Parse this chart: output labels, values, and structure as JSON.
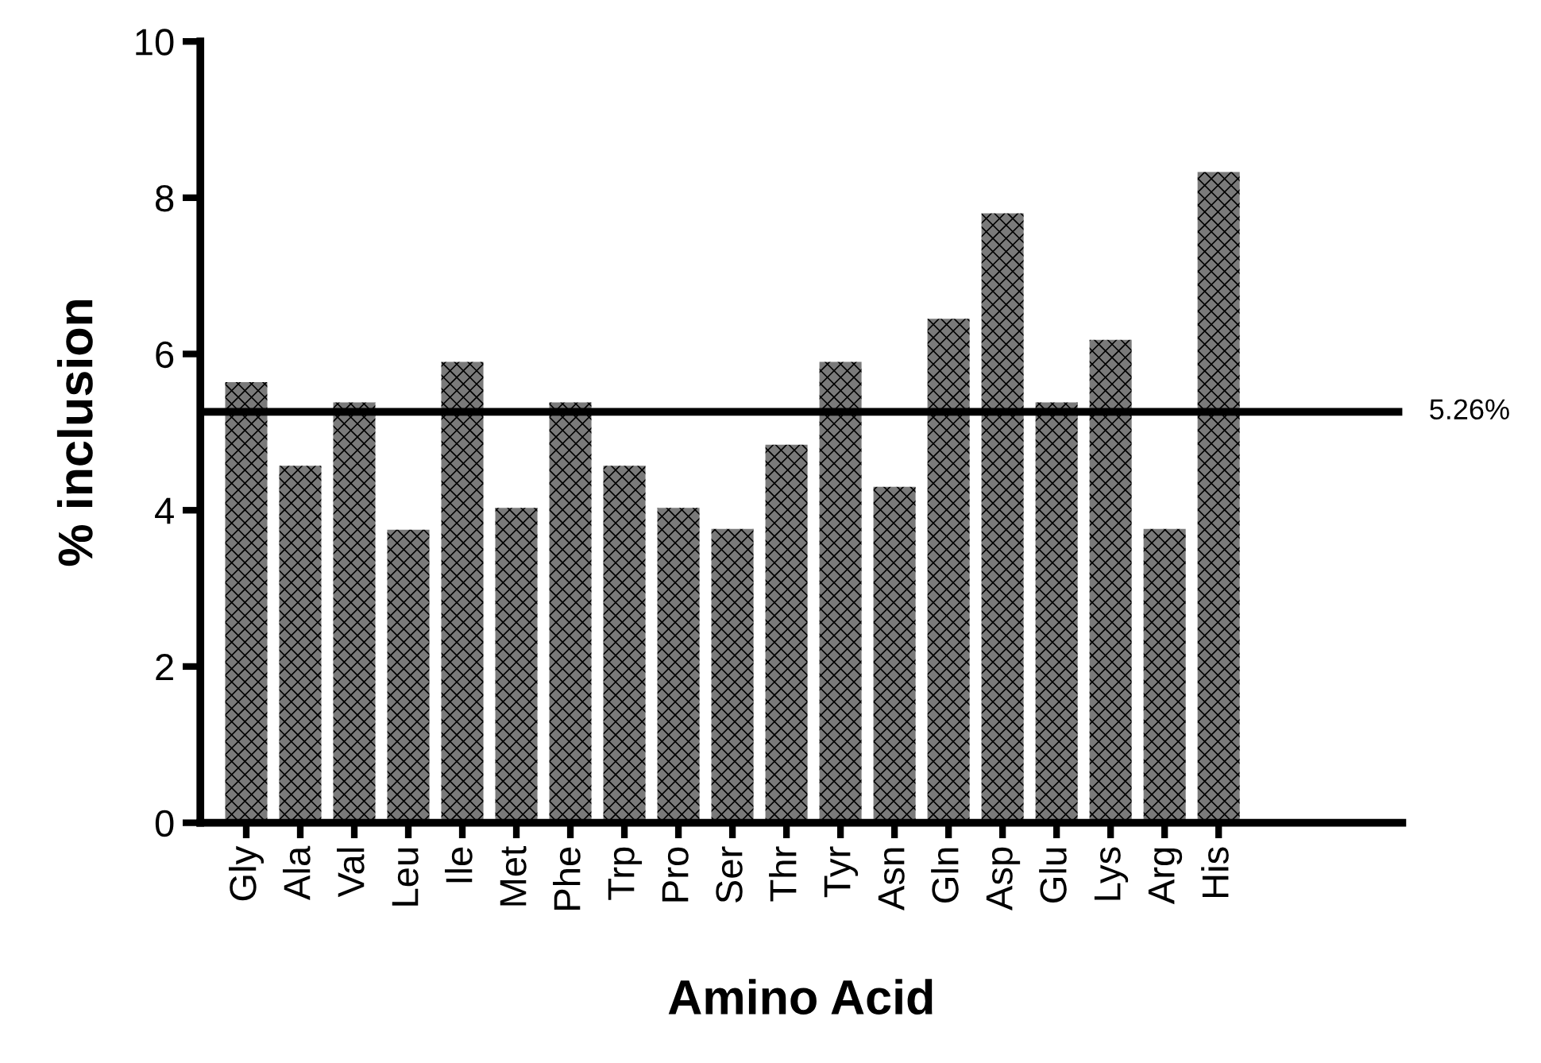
{
  "chart_data": {
    "type": "bar",
    "xlabel": "Amino Acid",
    "ylabel": "% inclusion",
    "categories": [
      "Gly",
      "Ala",
      "Val",
      "Leu",
      "Ile",
      "Met",
      "Phe",
      "Trp",
      "Pro",
      "Ser",
      "Thr",
      "Tyr",
      "Asn",
      "Gln",
      "Asp",
      "Glu",
      "Lys",
      "Arg",
      "His"
    ],
    "values": [
      5.64,
      4.57,
      5.38,
      3.75,
      5.9,
      4.03,
      5.38,
      4.57,
      4.03,
      3.76,
      4.84,
      5.9,
      4.3,
      6.45,
      7.8,
      5.38,
      6.18,
      3.76,
      8.33
    ],
    "color": "#7a7a7a",
    "ylim": [
      0,
      10
    ],
    "yticks": [
      0,
      2,
      4,
      6,
      8,
      10
    ],
    "ref_lines": [
      {
        "axis": "y",
        "value": 5.26,
        "label": "5.26%",
        "color": "#000000"
      }
    ],
    "grid": false,
    "legend": false
  }
}
